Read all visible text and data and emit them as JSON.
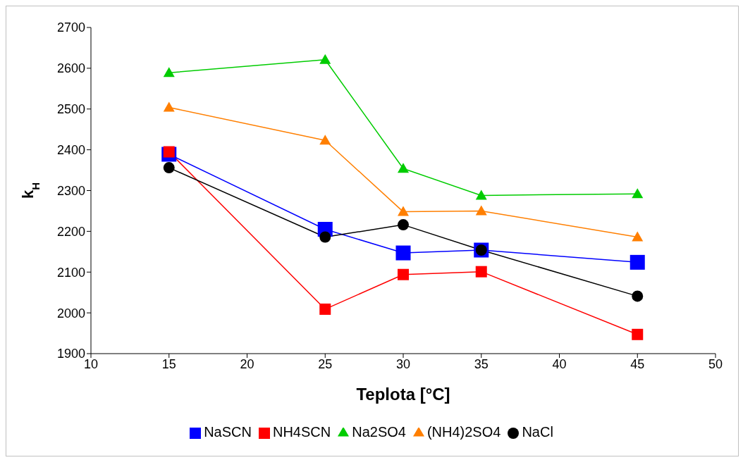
{
  "chart_data": {
    "type": "line",
    "xlabel": "Teplota [°C]",
    "ylabel": "k$_{H}$",
    "x": [
      15,
      25,
      30,
      35,
      45
    ],
    "xlim": [
      10,
      50
    ],
    "xticks": [
      10,
      15,
      20,
      25,
      30,
      35,
      40,
      45,
      50
    ],
    "ylim": [
      1900,
      2700
    ],
    "yticks": [
      1900,
      2000,
      2100,
      2200,
      2300,
      2400,
      2500,
      2600,
      2700
    ],
    "grid": false,
    "legend": "bottom",
    "series": [
      {
        "name": "NaSCN",
        "color": "#0000ff",
        "marker": "square",
        "values": [
          2389,
          2205,
          2147,
          2154,
          2124
        ]
      },
      {
        "name": "NH4SCN",
        "color": "#ff0000",
        "marker": "square",
        "values": [
          2395,
          2009,
          2094,
          2101,
          1947
        ]
      },
      {
        "name": "Na2SO4",
        "color": "#00cc00",
        "marker": "triangle",
        "values": [
          2589,
          2621,
          2354,
          2288,
          2292
        ]
      },
      {
        "name": "(NH4)2SO4",
        "color": "#ff7f00",
        "marker": "triangle",
        "values": [
          2504,
          2423,
          2248,
          2250,
          2186
        ]
      },
      {
        "name": "NaCl",
        "color": "#000000",
        "marker": "circle",
        "values": [
          2356,
          2186,
          2216,
          2154,
          2041
        ]
      }
    ]
  }
}
